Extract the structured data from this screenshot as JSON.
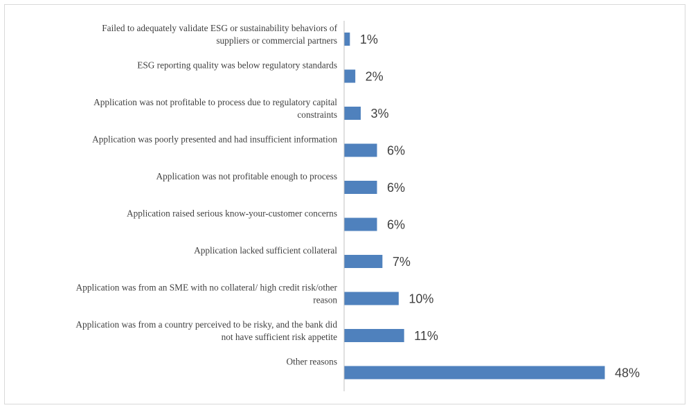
{
  "chart_data": {
    "type": "bar",
    "orientation": "horizontal",
    "title": "",
    "xlabel": "",
    "ylabel": "",
    "grid": false,
    "legend": "none",
    "bar_color": "#4f81bd",
    "xlim": [
      0,
      54
    ],
    "categories": [
      "Failed to adequately validate ESG or sustainability behaviors of suppliers or commercial partners",
      "ESG reporting quality was below regulatory standards",
      "Application was not profitable to process due to regulatory capital constraints",
      "Application was poorly presented and had insufficient information",
      "Application was not profitable enough to process",
      "Application raised serious know-your-customer concerns",
      "Application lacked sufficient collateral",
      "Application was from an SME with no collateral/ high credit risk/other reason",
      "Application was from a country perceived to be risky, and the bank did not have sufficient risk appetite",
      "Other reasons"
    ],
    "category_lines": [
      [
        "Failed to adequately validate ESG or sustainability behaviors of",
        "suppliers or commercial partners"
      ],
      [
        "ESG reporting quality was below regulatory standards"
      ],
      [
        "Application was not profitable to process due to regulatory capital",
        "constraints"
      ],
      [
        "Application was poorly presented and had insufficient information"
      ],
      [
        "Application was not profitable enough to process"
      ],
      [
        "Application raised serious know-your-customer concerns"
      ],
      [
        "Application lacked sufficient collateral"
      ],
      [
        "Application was from an SME with no collateral/ high credit risk/other",
        "reason"
      ],
      [
        "Application was from a country perceived to be risky, and the bank did",
        "not have sufficient risk appetite"
      ],
      [
        "Other reasons"
      ]
    ],
    "values": [
      1,
      2,
      3,
      6,
      6,
      6,
      7,
      10,
      11,
      48
    ],
    "value_labels": [
      "1%",
      "2%",
      "3%",
      "6%",
      "6%",
      "6%",
      "7%",
      "10%",
      "11%",
      "48%"
    ]
  }
}
